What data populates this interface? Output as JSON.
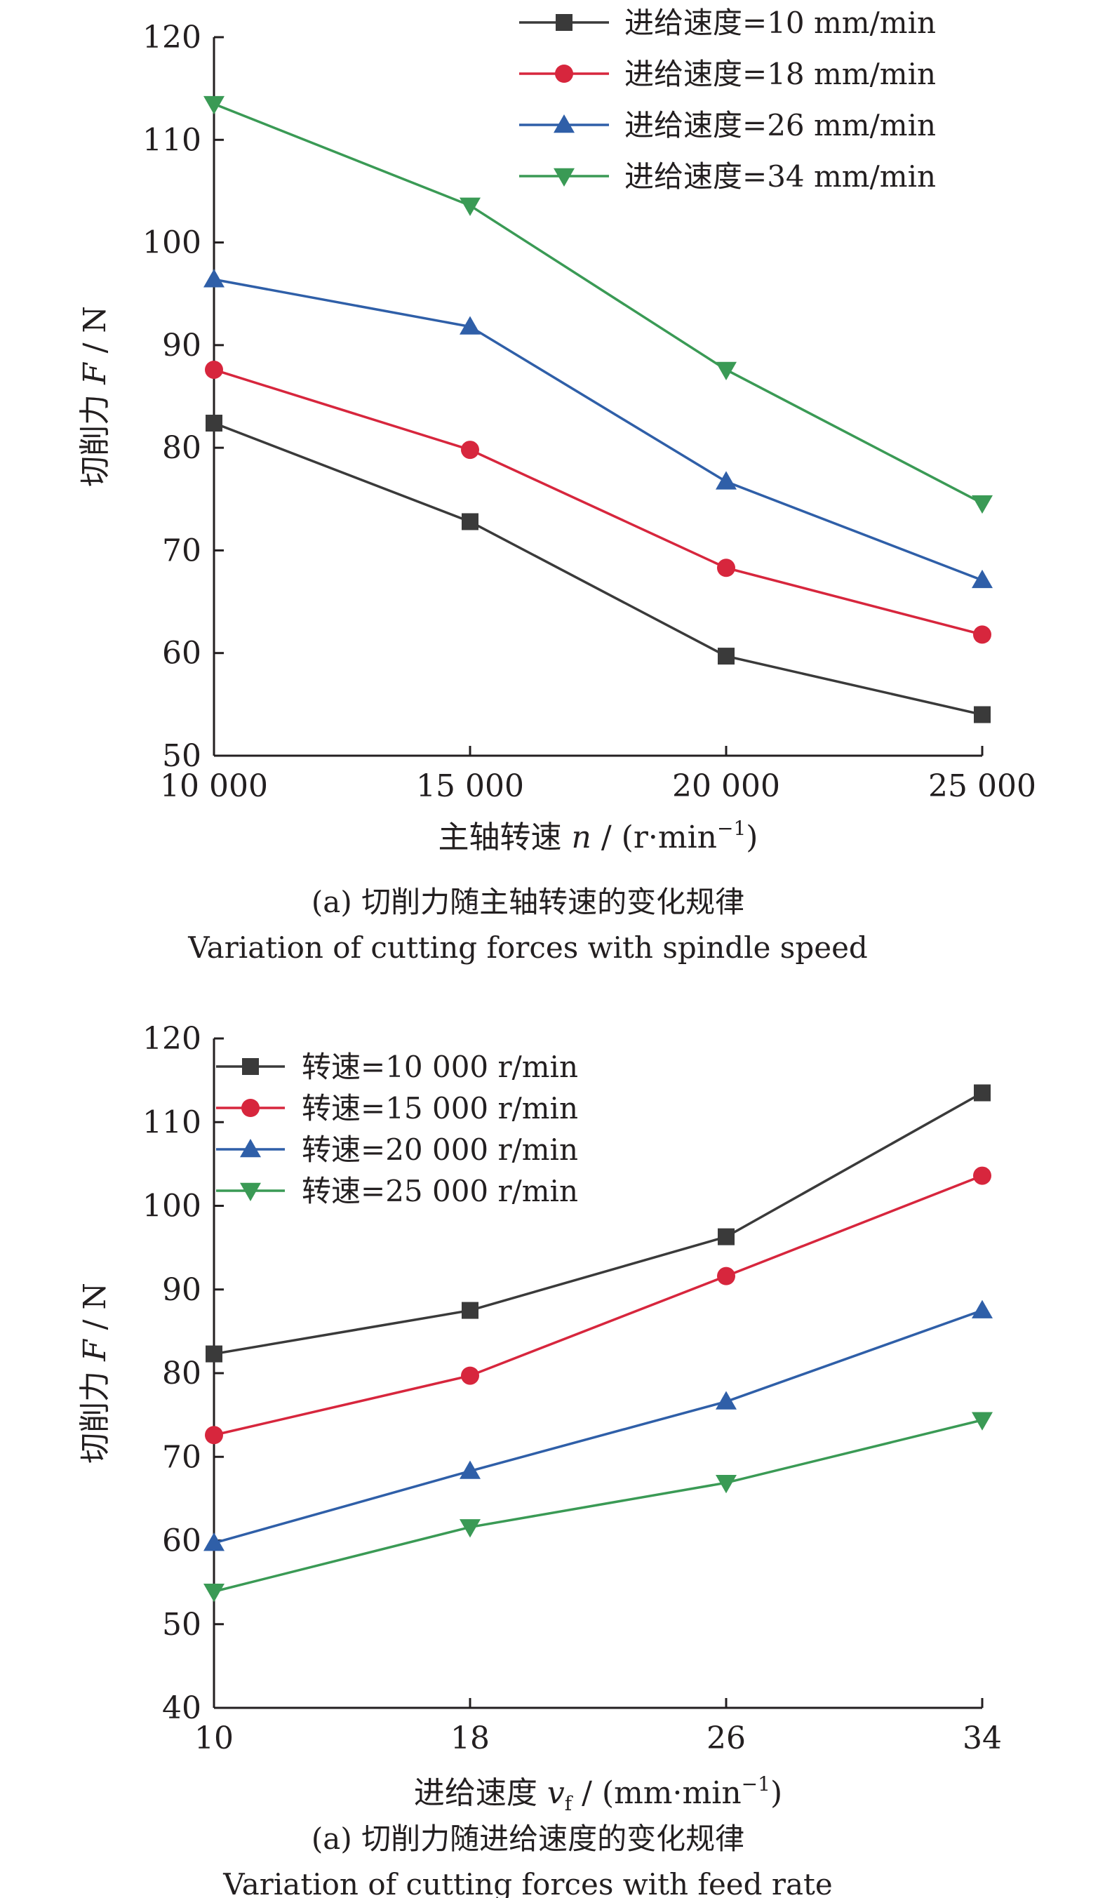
{
  "chart_data": [
    {
      "type": "line",
      "x": [
        10000,
        15000,
        20000,
        25000
      ],
      "xtick_labels": [
        "10 000",
        "15 000",
        "20 000",
        "25 000"
      ],
      "xlim": [
        10000,
        25000
      ],
      "ylim": [
        50,
        120
      ],
      "yticks": [
        50,
        60,
        70,
        80,
        90,
        100,
        110,
        120
      ],
      "ylabel": {
        "pre": "切削力 ",
        "var": "F",
        "post": " / N"
      },
      "xlabel": {
        "pre": "主轴转速 ",
        "var": "n",
        "sub": "",
        "post": " / (r·min",
        "sup": "−1",
        "end": ")"
      },
      "legend_position": "top-right",
      "grid": false,
      "series": [
        {
          "name": "进给速度=10 mm/min",
          "color": "#3a3a3a",
          "marker": "square",
          "values": [
            82.4,
            72.8,
            59.7,
            54.0
          ]
        },
        {
          "name": "进给速度=18 mm/min",
          "color": "#d7263d",
          "marker": "circle",
          "values": [
            87.6,
            79.8,
            68.3,
            61.8
          ]
        },
        {
          "name": "进给速度=26 mm/min",
          "color": "#2f5fa8",
          "marker": "triangle",
          "values": [
            96.4,
            91.8,
            76.7,
            67.1
          ]
        },
        {
          "name": "进给速度=34 mm/min",
          "color": "#3a9a55",
          "marker": "triangle-down",
          "values": [
            113.5,
            103.6,
            87.6,
            74.6
          ]
        }
      ],
      "caption_cn": "(a) 切削力随主轴转速的变化规律",
      "caption_en": "Variation of cutting forces with spindle speed"
    },
    {
      "type": "line",
      "x": [
        10,
        18,
        26,
        34
      ],
      "xtick_labels": [
        "10",
        "18",
        "26",
        "34"
      ],
      "xlim": [
        10,
        34
      ],
      "ylim": [
        40,
        120
      ],
      "yticks": [
        40,
        50,
        60,
        70,
        80,
        90,
        100,
        110,
        120
      ],
      "ylabel": {
        "pre": "切削力 ",
        "var": "F",
        "post": " / N"
      },
      "xlabel": {
        "pre": "进给速度 ",
        "var": "v",
        "sub": "f",
        "post": " / (mm·min",
        "sup": "−1",
        "end": ")"
      },
      "legend_position": "top-left",
      "grid": false,
      "series": [
        {
          "name": "转速=10 000 r/min",
          "color": "#3a3a3a",
          "marker": "square",
          "values": [
            82.3,
            87.5,
            96.3,
            113.5
          ]
        },
        {
          "name": "转速=15 000 r/min",
          "color": "#d7263d",
          "marker": "circle",
          "values": [
            72.6,
            79.7,
            91.6,
            103.6
          ]
        },
        {
          "name": "转速=20 000 r/min",
          "color": "#2f5fa8",
          "marker": "triangle",
          "values": [
            59.7,
            68.3,
            76.6,
            87.5
          ]
        },
        {
          "name": "转速=25 000 r/min",
          "color": "#3a9a55",
          "marker": "triangle-down",
          "values": [
            53.9,
            61.6,
            66.9,
            74.4
          ]
        }
      ],
      "caption_cn": "(a) 切削力随进给速度的变化规律",
      "caption_en": "Variation of cutting forces with feed rate"
    }
  ]
}
